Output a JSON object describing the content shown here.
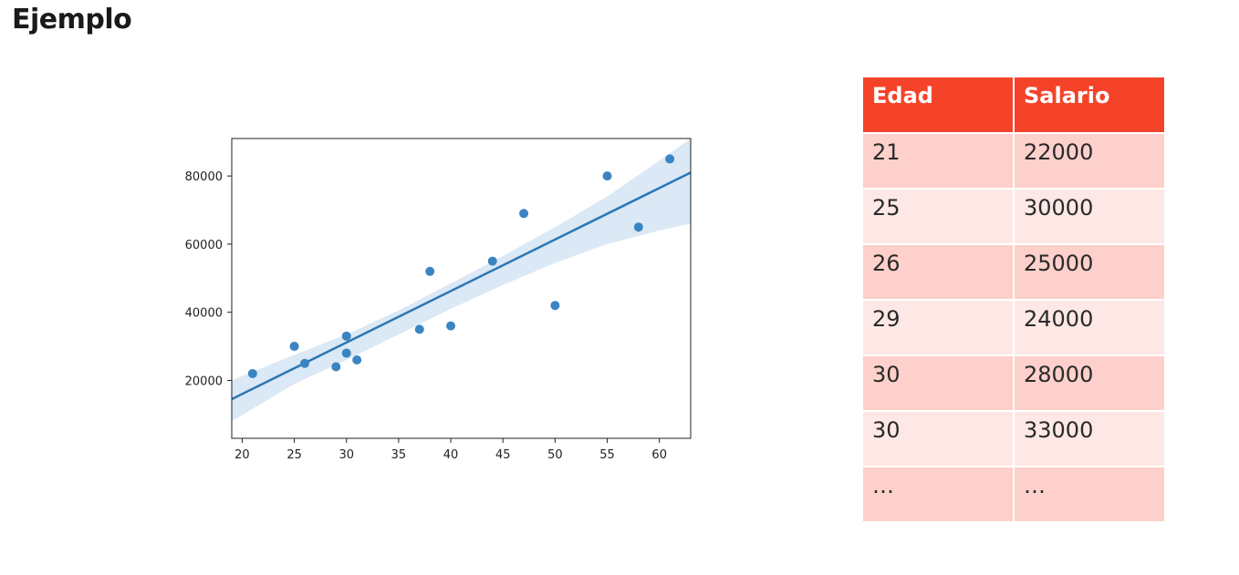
{
  "page": {
    "title": "Ejemplo"
  },
  "colors": {
    "point": "#3a84c1",
    "line": "#2a77b4",
    "band": "#cfe0f1",
    "header_bg": "#f5432a",
    "row_dark": "#fdd0cb",
    "row_light": "#fde8e5"
  },
  "table": {
    "headers": [
      "Edad",
      "Salario"
    ],
    "rows": [
      [
        "21",
        "22000"
      ],
      [
        "25",
        "30000"
      ],
      [
        "26",
        "25000"
      ],
      [
        "29",
        "24000"
      ],
      [
        "30",
        "28000"
      ],
      [
        "30",
        "33000"
      ],
      [
        "…",
        "…"
      ]
    ]
  },
  "chart_data": {
    "type": "scatter",
    "title": "",
    "xlabel": "",
    "ylabel": "",
    "xlim": [
      19,
      63
    ],
    "ylim": [
      3000,
      91000
    ],
    "xticks": [
      20,
      25,
      30,
      35,
      40,
      45,
      50,
      55,
      60
    ],
    "yticks": [
      20000,
      40000,
      60000,
      80000
    ],
    "grid": false,
    "points": [
      {
        "x": 21,
        "y": 22000
      },
      {
        "x": 25,
        "y": 30000
      },
      {
        "x": 26,
        "y": 25000
      },
      {
        "x": 29,
        "y": 24000
      },
      {
        "x": 30,
        "y": 28000
      },
      {
        "x": 30,
        "y": 33000
      },
      {
        "x": 31,
        "y": 26000
      },
      {
        "x": 37,
        "y": 35000
      },
      {
        "x": 38,
        "y": 52000
      },
      {
        "x": 40,
        "y": 36000
      },
      {
        "x": 44,
        "y": 55000
      },
      {
        "x": 47,
        "y": 69000
      },
      {
        "x": 50,
        "y": 42000
      },
      {
        "x": 55,
        "y": 80000
      },
      {
        "x": 58,
        "y": 65000
      },
      {
        "x": 61,
        "y": 85000
      }
    ],
    "regression_line": [
      {
        "x": 19,
        "y": 14500
      },
      {
        "x": 63,
        "y": 81000
      }
    ],
    "confidence_band": {
      "upper": [
        {
          "x": 19,
          "y": 20000
        },
        {
          "x": 25,
          "y": 27500
        },
        {
          "x": 30,
          "y": 33500
        },
        {
          "x": 35,
          "y": 40500
        },
        {
          "x": 40,
          "y": 48500
        },
        {
          "x": 45,
          "y": 56500
        },
        {
          "x": 50,
          "y": 65000
        },
        {
          "x": 55,
          "y": 74000
        },
        {
          "x": 60,
          "y": 84500
        },
        {
          "x": 63,
          "y": 91000
        }
      ],
      "lower": [
        {
          "x": 19,
          "y": 8000
        },
        {
          "x": 25,
          "y": 19000
        },
        {
          "x": 30,
          "y": 26000
        },
        {
          "x": 35,
          "y": 33500
        },
        {
          "x": 40,
          "y": 41000
        },
        {
          "x": 45,
          "y": 48000
        },
        {
          "x": 50,
          "y": 54500
        },
        {
          "x": 55,
          "y": 60000
        },
        {
          "x": 60,
          "y": 64000
        },
        {
          "x": 63,
          "y": 66000
        }
      ]
    }
  }
}
